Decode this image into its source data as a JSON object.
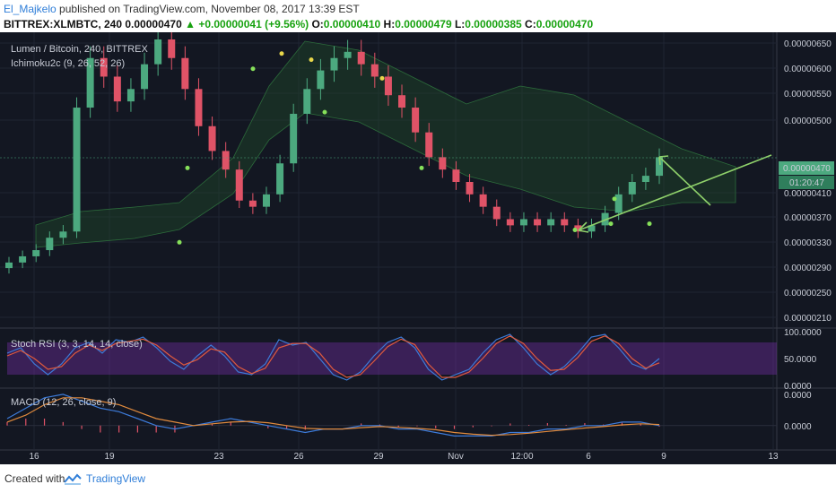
{
  "header": {
    "author": "El_Majkelo",
    "published_text": "published on TradingView.com, November 08, 2017 13:39 EST",
    "symbol": "BITTREX:XLMBTC, 240",
    "last": "0.00000470",
    "change": "+0.00000041 (+9.56%)",
    "o_label": "O:",
    "o_value": "0.00000410",
    "h_label": "H:",
    "h_value": "0.00000479",
    "l_label": "L:",
    "l_value": "0.00000385",
    "c_label": "C:",
    "c_value": "0.00000470"
  },
  "footer": {
    "created_with": "Created with",
    "brand": "TradingView"
  },
  "chart_data": [
    {
      "type": "candlestick",
      "title": "Lumen / Bitcoin, 240, BITTREX",
      "indicator": "Ichimoku2c (9, 26, 52, 26)",
      "y_ticks": [
        "0.00000650",
        "0.00000600",
        "0.00000550",
        "0.00000500",
        "0.00000470",
        "0.00000410",
        "0.00000370",
        "0.00000330",
        "0.00000290",
        "0.00000250",
        "0.00000210"
      ],
      "price_label": "0.00000470",
      "countdown_label": "01:20:47",
      "x_ticks": [
        "16",
        "19",
        "23",
        "26",
        "29",
        "Nov",
        "12:00",
        "6",
        "9",
        "13"
      ],
      "ylim": [
        2e-06,
        6.6e-06
      ],
      "close_series_approx": [
        3e-06,
        3.1e-06,
        3.2e-06,
        3.4e-06,
        3.5e-06,
        5.5e-06,
        6.3e-06,
        6e-06,
        5.6e-06,
        5.8e-06,
        6.2e-06,
        6.6e-06,
        6.3e-06,
        5.8e-06,
        5.2e-06,
        4.8e-06,
        4.5e-06,
        4e-06,
        3.9e-06,
        4.1e-06,
        4.6e-06,
        5.4e-06,
        5.8e-06,
        6.1e-06,
        6.3e-06,
        6.4e-06,
        6.2e-06,
        6e-06,
        5.7e-06,
        5.5e-06,
        5.1e-06,
        4.7e-06,
        4.5e-06,
        4.3e-06,
        4.1e-06,
        3.9e-06,
        3.7e-06,
        3.6e-06,
        3.7e-06,
        3.6e-06,
        3.7e-06,
        3.6e-06,
        3.5e-06,
        3.6e-06,
        3.8e-06,
        4.1e-06,
        4.3e-06,
        4.4e-06,
        4.7e-06
      ],
      "marker_green": [
        3.5e-06,
        4.7e-06,
        6.3e-06,
        5.6e-06,
        4.7e-06,
        3.7e-06,
        3.8e-06,
        4.2e-06,
        3.8e-06
      ],
      "marker_yellow": [
        6.3e-06,
        6.2e-06,
        5.9e-06
      ]
    },
    {
      "type": "line",
      "title": "Stoch RSI (3, 3, 14, 14, close)",
      "y_ticks": [
        "100.0000",
        "50.0000",
        "0.0000"
      ],
      "band": [
        20,
        80
      ],
      "ylim": [
        0,
        100
      ],
      "series": [
        {
          "values": [
            60,
            70,
            40,
            20,
            40,
            70,
            80,
            60,
            85,
            80,
            90,
            70,
            45,
            30,
            55,
            75,
            55,
            25,
            20,
            40,
            85,
            75,
            80,
            50,
            20,
            10,
            25,
            55,
            80,
            90,
            70,
            30,
            10,
            20,
            30,
            60,
            85,
            95,
            70,
            40,
            20,
            35,
            60,
            90,
            95,
            70,
            40,
            30,
            50
          ]
        },
        {
          "values": [
            55,
            65,
            50,
            30,
            35,
            60,
            75,
            65,
            78,
            82,
            86,
            75,
            55,
            38,
            48,
            68,
            62,
            35,
            22,
            32,
            70,
            78,
            78,
            60,
            30,
            15,
            20,
            45,
            72,
            86,
            76,
            40,
            15,
            15,
            25,
            50,
            78,
            92,
            78,
            50,
            28,
            30,
            52,
            82,
            92,
            78,
            50,
            32,
            42
          ]
        }
      ]
    },
    {
      "type": "line",
      "title": "MACD (12, 26, close, 9)",
      "y_ticks": [
        "0.0000",
        "0.0000"
      ],
      "ylim": [
        -0.6,
        1.0
      ],
      "series": [
        {
          "values": [
            0.2,
            0.5,
            0.8,
            0.9,
            0.7,
            0.5,
            0.4,
            0.2,
            0.0,
            -0.1,
            0.0,
            0.1,
            0.2,
            0.1,
            0.0,
            -0.1,
            -0.2,
            -0.1,
            -0.1,
            0.0,
            0.0,
            -0.1,
            -0.1,
            -0.2,
            -0.3,
            -0.3,
            -0.3,
            -0.2,
            -0.2,
            -0.1,
            -0.1,
            0.0,
            0.0,
            0.1,
            0.1,
            0.0
          ]
        },
        {
          "values": [
            0.1,
            0.3,
            0.6,
            0.8,
            0.8,
            0.7,
            0.6,
            0.4,
            0.2,
            0.1,
            0.0,
            0.05,
            0.1,
            0.12,
            0.08,
            0.0,
            -0.08,
            -0.1,
            -0.1,
            -0.06,
            -0.03,
            -0.05,
            -0.08,
            -0.12,
            -0.2,
            -0.25,
            -0.28,
            -0.26,
            -0.22,
            -0.17,
            -0.12,
            -0.07,
            -0.03,
            0.02,
            0.05,
            0.03
          ]
        }
      ],
      "histogram": [
        0.1,
        0.2,
        0.2,
        0.1,
        -0.1,
        -0.2,
        -0.2,
        -0.2,
        -0.2,
        -0.2,
        0.0,
        0.05,
        0.1,
        0.0,
        -0.08,
        -0.1,
        -0.12,
        0.0,
        0.0,
        0.06,
        0.03,
        -0.05,
        -0.02,
        -0.08,
        -0.1,
        -0.05,
        -0.02,
        0.06,
        0.02,
        0.07,
        0.02,
        0.07,
        0.03,
        0.08,
        0.05,
        -0.03
      ]
    }
  ]
}
